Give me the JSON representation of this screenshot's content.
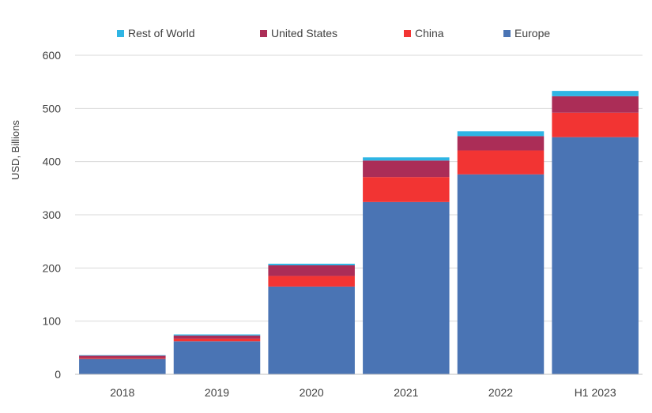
{
  "chart_data": {
    "type": "bar",
    "stacked": true,
    "ylabel": "USD, Billions",
    "xlabel": "",
    "ylim": [
      0,
      600
    ],
    "yticks": [
      0,
      100,
      200,
      300,
      400,
      500,
      600
    ],
    "grid": true,
    "legend_position": "top",
    "categories": [
      "2018",
      "2019",
      "2020",
      "2021",
      "2022",
      "H1 2023"
    ],
    "series": [
      {
        "name": "Europe",
        "color": "#4a74b4",
        "values": [
          29,
          62,
          165,
          324,
          376,
          446
        ]
      },
      {
        "name": "China",
        "color": "#f23433",
        "values": [
          2,
          5,
          20,
          47,
          45,
          46
        ]
      },
      {
        "name": "United States",
        "color": "#ab2d57",
        "values": [
          4,
          6,
          20,
          31,
          27,
          31
        ]
      },
      {
        "name": "Rest of World",
        "color": "#2fb5e4",
        "values": [
          1,
          2,
          3,
          6,
          9,
          10
        ]
      }
    ],
    "legend_order": [
      "Rest of World",
      "United States",
      "China",
      "Europe"
    ]
  }
}
